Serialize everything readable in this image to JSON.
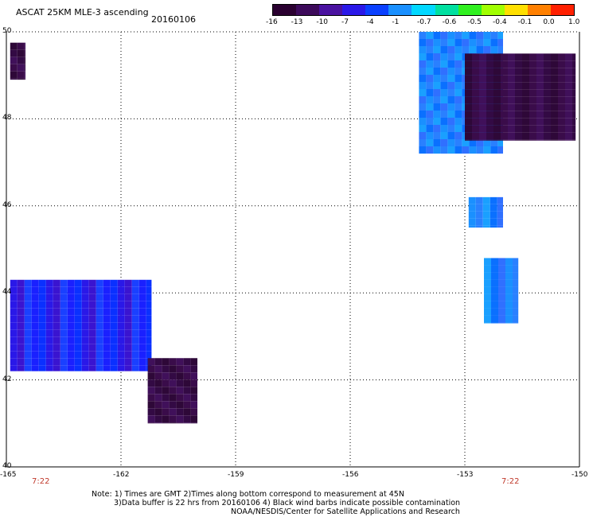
{
  "title": "ASCAT 25KM MLE-3 ascending",
  "date": "20160106",
  "colorbar": {
    "labels": [
      "-16",
      "-13",
      "-10",
      "-7",
      "-4",
      "-1",
      "-0.7",
      "-0.6",
      "-0.5",
      "-0.4",
      "-0.1",
      "0.0",
      "1.0"
    ],
    "colors": [
      "#2a0030",
      "#3c0a5a",
      "#4a12a0",
      "#2a18e8",
      "#0a40ff",
      "#1a90ff",
      "#00d8ff",
      "#00e0a0",
      "#30f020",
      "#a0ff00",
      "#ffe000",
      "#ff8000",
      "#ff2000"
    ]
  },
  "axes": {
    "x_ticks": [
      "-165",
      "-162",
      "-159",
      "-156",
      "-153",
      "-150"
    ],
    "y_ticks": [
      "50",
      "48",
      "46",
      "44",
      "42",
      "40"
    ],
    "lon_range": [
      -165,
      -150
    ],
    "lat_range": [
      40,
      50
    ]
  },
  "time_labels": [
    "7:22",
    "7:22"
  ],
  "notes": [
    "Note: 1) Times are GMT 2)Times along bottom correspond to measurement at 45N",
    "3)Data buffer is 22 hrs from 20160106 4) Black wind barbs indicate possible contamination",
    "NOAA/NESDIS/Center for Satellite Applications and Research"
  ],
  "chart_data": {
    "type": "heatmap",
    "xlabel": "",
    "ylabel": "",
    "regions": [
      {
        "lon": [
          -164.9,
          -164.5
        ],
        "lat": [
          48.9,
          49.75
        ],
        "level": "dark-purple"
      },
      {
        "lon": [
          -164.9,
          -161.2
        ],
        "lat": [
          42.2,
          44.3
        ],
        "level": "blue"
      },
      {
        "lon": [
          -161.3,
          -160.0
        ],
        "lat": [
          41.0,
          42.5
        ],
        "level": "dark-purple"
      },
      {
        "lon": [
          -154.2,
          -152.0
        ],
        "lat": [
          47.2,
          50.0
        ],
        "level": "light-blue"
      },
      {
        "lon": [
          -153.0,
          -150.1
        ],
        "lat": [
          47.5,
          49.5
        ],
        "level": "dark-purple"
      },
      {
        "lon": [
          -152.9,
          -152.0
        ],
        "lat": [
          45.5,
          46.2
        ],
        "level": "light-blue"
      },
      {
        "lon": [
          -152.5,
          -151.6
        ],
        "lat": [
          43.3,
          44.8
        ],
        "level": "light-blue"
      }
    ]
  }
}
